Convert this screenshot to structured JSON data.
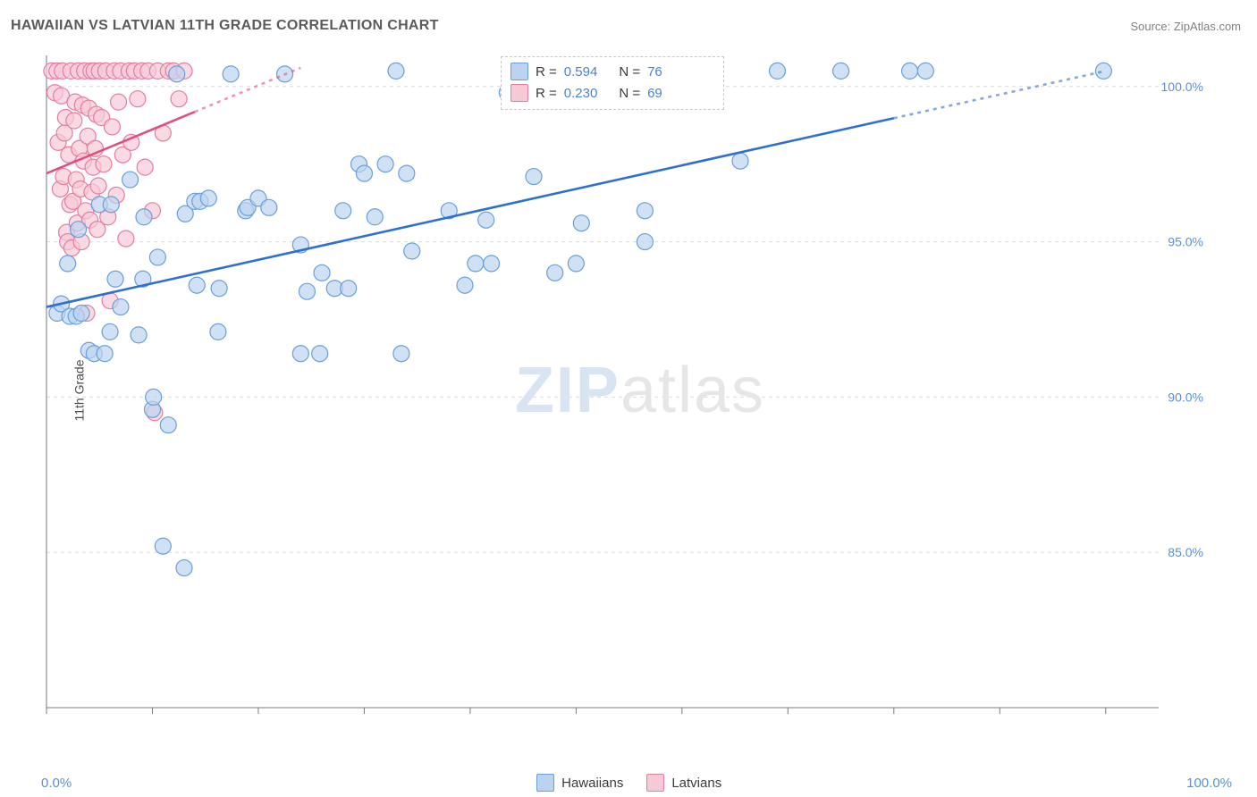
{
  "title": "HAWAIIAN VS LATVIAN 11TH GRADE CORRELATION CHART",
  "source": "Source: ZipAtlas.com",
  "yaxis_label": "11th Grade",
  "watermark_bold": "ZIP",
  "watermark_rest": "atlas",
  "chart": {
    "type": "scatter",
    "xlim": [
      0,
      105
    ],
    "ylim": [
      80,
      101
    ],
    "xticks": [
      0,
      10,
      20,
      30,
      40,
      50,
      60,
      70,
      80,
      90,
      100
    ],
    "yticks": [
      85,
      90,
      95,
      100
    ],
    "ytick_labels": [
      "85.0%",
      "90.0%",
      "95.0%",
      "100.0%"
    ],
    "x_left_label": "0.0%",
    "x_right_label": "100.0%",
    "background": "#ffffff",
    "grid_color": "#dcdcdc",
    "axis_color": "#7a7a7a",
    "tick_label_color": "#5b8fd6",
    "marker_radius": 9,
    "marker_stroke_width": 1.2,
    "trendline_width": 2.6,
    "legend_bottom": {
      "items": [
        {
          "label": "Hawaiians",
          "swatch_fill": "#bcd3ef",
          "swatch_stroke": "#6a9edc"
        },
        {
          "label": "Latvians",
          "swatch_fill": "#f6c9d6",
          "swatch_stroke": "#e67ca0"
        }
      ]
    },
    "legend_top": {
      "entries": [
        {
          "swatch_fill": "#bcd3ef",
          "swatch_stroke": "#6a9edc",
          "r_label": "R =",
          "r_value": "0.594",
          "n_label": "N =",
          "n_value": "76"
        },
        {
          "swatch_fill": "#f6c9d6",
          "swatch_stroke": "#e67ca0",
          "r_label": "R =",
          "r_value": "0.230",
          "n_label": "N =",
          "n_value": "69"
        }
      ],
      "label_color": "#3a3a3a",
      "value_color": "#4b82d4"
    },
    "series": [
      {
        "name": "Hawaiians",
        "color_fill": "#bcd3efb0",
        "color_stroke": "#6a9edc",
        "trendline_color": "#2f6fd0",
        "trendline_dash_from_x": 80,
        "trend": {
          "x0": 0,
          "y0": 92.9,
          "x1": 100,
          "y1": 100.5
        },
        "points": [
          [
            1.0,
            92.7
          ],
          [
            1.4,
            93.0
          ],
          [
            2.2,
            92.6
          ],
          [
            2.8,
            92.6
          ],
          [
            3.3,
            92.7
          ],
          [
            2.0,
            94.3
          ],
          [
            3.0,
            95.4
          ],
          [
            4.0,
            91.5
          ],
          [
            4.5,
            91.4
          ],
          [
            5.5,
            91.4
          ],
          [
            6.0,
            92.1
          ],
          [
            6.5,
            93.8
          ],
          [
            7.0,
            92.9
          ],
          [
            5.0,
            96.2
          ],
          [
            6.1,
            96.2
          ],
          [
            7.9,
            97.0
          ],
          [
            8.7,
            92.0
          ],
          [
            9.1,
            93.8
          ],
          [
            9.2,
            95.8
          ],
          [
            10.0,
            89.6
          ],
          [
            10.1,
            90.0
          ],
          [
            11.5,
            89.1
          ],
          [
            13.0,
            84.5
          ],
          [
            11.0,
            85.2
          ],
          [
            10.5,
            94.5
          ],
          [
            12.3,
            100.4
          ],
          [
            13.1,
            95.9
          ],
          [
            14.0,
            96.3
          ],
          [
            14.2,
            93.6
          ],
          [
            14.5,
            96.3
          ],
          [
            15.3,
            96.4
          ],
          [
            16.2,
            92.1
          ],
          [
            16.3,
            93.5
          ],
          [
            17.4,
            100.4
          ],
          [
            18.8,
            96.0
          ],
          [
            19.0,
            96.1
          ],
          [
            20.0,
            96.4
          ],
          [
            21.0,
            96.1
          ],
          [
            22.5,
            100.4
          ],
          [
            24.0,
            94.9
          ],
          [
            24.0,
            91.4
          ],
          [
            24.6,
            93.4
          ],
          [
            25.8,
            91.4
          ],
          [
            26.0,
            94.0
          ],
          [
            27.2,
            93.5
          ],
          [
            28.0,
            96.0
          ],
          [
            28.5,
            93.5
          ],
          [
            29.5,
            97.5
          ],
          [
            30.0,
            97.2
          ],
          [
            31.0,
            95.8
          ],
          [
            32.0,
            97.5
          ],
          [
            33.0,
            100.5
          ],
          [
            33.5,
            91.4
          ],
          [
            34.0,
            97.2
          ],
          [
            34.5,
            94.7
          ],
          [
            38.0,
            96.0
          ],
          [
            39.5,
            93.6
          ],
          [
            40.5,
            94.3
          ],
          [
            41.5,
            95.7
          ],
          [
            42.0,
            94.3
          ],
          [
            43.5,
            99.8
          ],
          [
            45.0,
            100.5
          ],
          [
            46.0,
            97.1
          ],
          [
            48.0,
            94.0
          ],
          [
            50.0,
            94.3
          ],
          [
            50.5,
            95.6
          ],
          [
            52.0,
            100.5
          ],
          [
            56.5,
            96.0
          ],
          [
            56.5,
            95.0
          ],
          [
            63.0,
            100.5
          ],
          [
            65.5,
            97.6
          ],
          [
            69.0,
            100.5
          ],
          [
            75.0,
            100.5
          ],
          [
            81.5,
            100.5
          ],
          [
            83.0,
            100.5
          ],
          [
            99.8,
            100.5
          ]
        ]
      },
      {
        "name": "Latvians",
        "color_fill": "#f6c9d6b0",
        "color_stroke": "#e67ca0",
        "trendline_color": "#e0507f",
        "trendline_dash_from_x": 14,
        "trend": {
          "x0": 0,
          "y0": 97.2,
          "x1": 24,
          "y1": 100.6
        },
        "points": [
          [
            0.5,
            100.5
          ],
          [
            0.8,
            99.8
          ],
          [
            1.0,
            100.5
          ],
          [
            1.1,
            98.2
          ],
          [
            1.3,
            96.7
          ],
          [
            1.4,
            99.7
          ],
          [
            1.5,
            100.5
          ],
          [
            1.6,
            97.1
          ],
          [
            1.7,
            98.5
          ],
          [
            1.8,
            99.0
          ],
          [
            1.9,
            95.3
          ],
          [
            2.0,
            95.0
          ],
          [
            2.1,
            97.8
          ],
          [
            2.2,
            96.2
          ],
          [
            2.3,
            100.5
          ],
          [
            2.4,
            94.8
          ],
          [
            2.5,
            96.3
          ],
          [
            2.6,
            98.9
          ],
          [
            2.7,
            99.5
          ],
          [
            2.8,
            97.0
          ],
          [
            2.9,
            95.6
          ],
          [
            3.0,
            100.5
          ],
          [
            3.1,
            98.0
          ],
          [
            3.2,
            96.7
          ],
          [
            3.3,
            95.0
          ],
          [
            3.4,
            99.4
          ],
          [
            3.5,
            97.6
          ],
          [
            3.6,
            100.5
          ],
          [
            3.7,
            96.0
          ],
          [
            3.8,
            92.7
          ],
          [
            3.9,
            98.4
          ],
          [
            4.0,
            99.3
          ],
          [
            4.1,
            95.7
          ],
          [
            4.2,
            100.5
          ],
          [
            4.3,
            96.6
          ],
          [
            4.4,
            97.4
          ],
          [
            4.5,
            100.5
          ],
          [
            4.6,
            98.0
          ],
          [
            4.7,
            99.1
          ],
          [
            4.8,
            95.4
          ],
          [
            4.9,
            96.8
          ],
          [
            5.0,
            100.5
          ],
          [
            5.2,
            99.0
          ],
          [
            5.4,
            97.5
          ],
          [
            5.6,
            100.5
          ],
          [
            5.8,
            95.8
          ],
          [
            6.0,
            93.1
          ],
          [
            6.2,
            98.7
          ],
          [
            6.4,
            100.5
          ],
          [
            6.6,
            96.5
          ],
          [
            6.8,
            99.5
          ],
          [
            7.0,
            100.5
          ],
          [
            7.2,
            97.8
          ],
          [
            7.5,
            95.1
          ],
          [
            7.8,
            100.5
          ],
          [
            8.0,
            98.2
          ],
          [
            8.3,
            100.5
          ],
          [
            8.6,
            99.6
          ],
          [
            9.0,
            100.5
          ],
          [
            9.3,
            97.4
          ],
          [
            9.6,
            100.5
          ],
          [
            10.0,
            96.0
          ],
          [
            10.5,
            100.5
          ],
          [
            11.0,
            98.5
          ],
          [
            11.5,
            100.5
          ],
          [
            12.0,
            100.5
          ],
          [
            12.5,
            99.6
          ],
          [
            13.0,
            100.5
          ],
          [
            10.2,
            89.5
          ]
        ]
      }
    ]
  }
}
